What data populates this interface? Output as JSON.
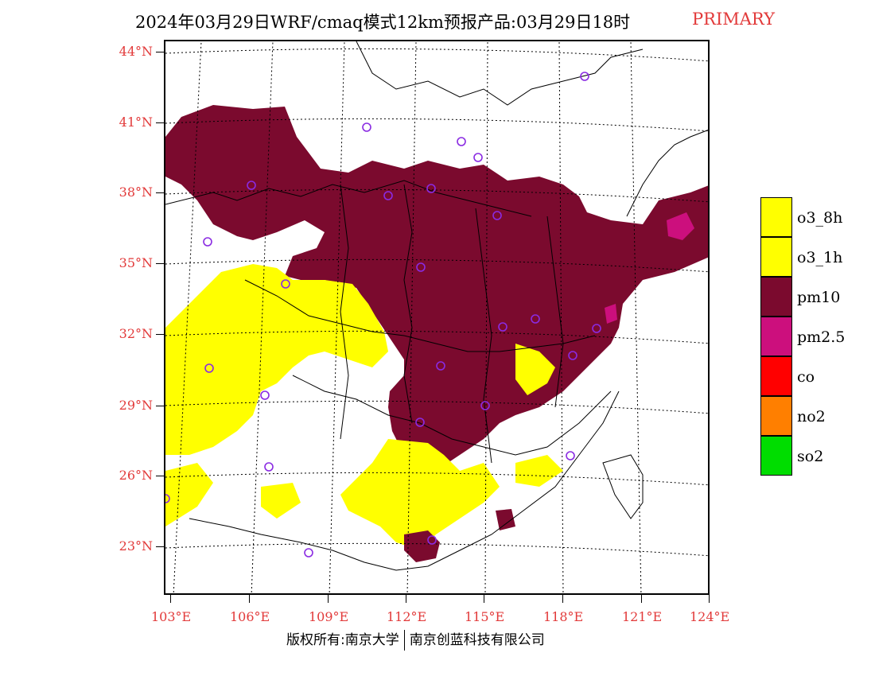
{
  "title": {
    "main": "2024年03月29日WRF/cmaq模式12km预报产品:03月29日18时",
    "tag": "PRIMARY"
  },
  "map": {
    "lat_labels": [
      "44°N",
      "41°N",
      "38°N",
      "35°N",
      "32°N",
      "29°N",
      "26°N",
      "23°N"
    ],
    "lon_labels": [
      "103°E",
      "106°E",
      "109°E",
      "112°E",
      "115°E",
      "118°E",
      "121°E",
      "124°E"
    ],
    "lat_range": [
      21,
      44.5
    ],
    "lon_range": [
      103,
      124
    ],
    "primary_regions": [
      {
        "pollutant": "pm10",
        "area": "northern and central China"
      },
      {
        "pollutant": "o3_8h",
        "area": "southwest and southern China"
      },
      {
        "pollutant": "pm2.5",
        "area": "Shandong peninsula and Jiangsu coast"
      }
    ],
    "station_marker_color": "#8a2be2"
  },
  "legend": {
    "items": [
      {
        "label": "o3_8h",
        "color": "#ffff00"
      },
      {
        "label": "o3_1h",
        "color": "#ffff00"
      },
      {
        "label": "pm10",
        "color": "#7b0a2e"
      },
      {
        "label": "pm2.5",
        "color": "#cc0f7d"
      },
      {
        "label": "co",
        "color": "#ff0000"
      },
      {
        "label": "no2",
        "color": "#ff7f00"
      },
      {
        "label": "so2",
        "color": "#00dd00"
      }
    ]
  },
  "footer": {
    "left": "版权所有:南京大学",
    "right": "南京创蓝科技有限公司"
  }
}
